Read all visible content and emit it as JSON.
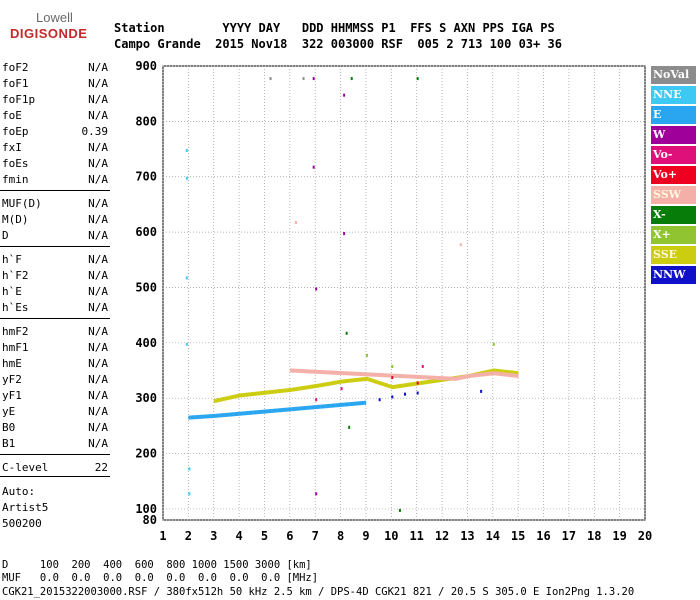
{
  "logo": {
    "top": "Lowell",
    "main": "DIGISONDE"
  },
  "header": {
    "line1": "Station        YYYY DAY   DDD HHMMSS P1  FFS S AXN PPS IGA PS",
    "line2": "Campo Grande  2015 Nov18  322 003000 RSF  005 2 713 100 03+ 36"
  },
  "params": [
    {
      "label": "foF2",
      "value": "N/A"
    },
    {
      "label": "foF1",
      "value": "N/A"
    },
    {
      "label": "foF1p",
      "value": "N/A"
    },
    {
      "label": "foE",
      "value": "N/A"
    },
    {
      "label": "foEp",
      "value": "0.39"
    },
    {
      "label": "fxI",
      "value": "N/A"
    },
    {
      "label": "foEs",
      "value": "N/A"
    },
    {
      "label": "fmin",
      "value": "N/A"
    },
    {
      "label": "MUF(D)",
      "value": "N/A"
    },
    {
      "label": "M(D)",
      "value": "N/A"
    },
    {
      "label": "D",
      "value": "N/A"
    },
    {
      "label": "h`F",
      "value": "N/A"
    },
    {
      "label": "h`F2",
      "value": "N/A"
    },
    {
      "label": "h`E",
      "value": "N/A"
    },
    {
      "label": "h`Es",
      "value": "N/A"
    },
    {
      "label": "hmF2",
      "value": "N/A"
    },
    {
      "label": "hmF1",
      "value": "N/A"
    },
    {
      "label": "hmE",
      "value": "N/A"
    },
    {
      "label": "yF2",
      "value": "N/A"
    },
    {
      "label": "yF1",
      "value": "N/A"
    },
    {
      "label": "yE",
      "value": "N/A"
    },
    {
      "label": "B0",
      "value": "N/A"
    },
    {
      "label": "B1",
      "value": "N/A"
    },
    {
      "label": "C-level",
      "value": "22"
    }
  ],
  "auto": {
    "line1": "Auto:",
    "line2": "Artist5",
    "line3": "500200"
  },
  "legend": [
    {
      "label": "NoVal",
      "color": "#8c8c8c"
    },
    {
      "label": "NNE",
      "color": "#3ec8f4"
    },
    {
      "label": "E",
      "color": "#2aa6f0"
    },
    {
      "label": "W",
      "color": "#a0009a"
    },
    {
      "label": "Vo-",
      "color": "#e0107a"
    },
    {
      "label": "Vo+",
      "color": "#f00020"
    },
    {
      "label": "SSW",
      "color": "#f4b0a8"
    },
    {
      "label": "X-",
      "color": "#087c08"
    },
    {
      "label": "X+",
      "color": "#90c430"
    },
    {
      "label": "SSE",
      "color": "#cccc10"
    },
    {
      "label": "NNW",
      "color": "#1010c8"
    }
  ],
  "footer": {
    "d_row": "D     100  200  400  600  800 1000 1500 3000 [km]",
    "muf_row": "MUF   0.0  0.0  0.0  0.0  0.0  0.0  0.0  0.0 [MHz]",
    "file_row": "CGK21_2015322003000.RSF / 380fx512h 50 kHz 2.5 km / DPS-4D CGK21 821 / 20.5 S 305.0 E Ion2Png 1.3.20"
  },
  "chart_data": {
    "type": "scatter",
    "xlim": [
      1,
      20
    ],
    "ylim": [
      80,
      900
    ],
    "x_ticks": [
      1,
      2,
      3,
      4,
      5,
      6,
      7,
      8,
      9,
      10,
      11,
      12,
      13,
      14,
      15,
      16,
      17,
      18,
      19,
      20
    ],
    "y_ticks": [
      80,
      100,
      200,
      300,
      400,
      500,
      600,
      700,
      800,
      900
    ],
    "grid": "dotted",
    "legend_placement": "right",
    "traces": [
      {
        "name": "E",
        "points": [
          [
            2.0,
            265
          ],
          [
            3.0,
            268
          ],
          [
            4.0,
            272
          ],
          [
            5.0,
            276
          ],
          [
            6.0,
            280
          ],
          [
            7.0,
            284
          ],
          [
            8.0,
            288
          ],
          [
            9.0,
            292
          ]
        ]
      },
      {
        "name": "NNE",
        "points": [
          [
            1.9,
            750
          ],
          [
            1.9,
            700
          ],
          [
            1.9,
            520
          ],
          [
            1.9,
            400
          ],
          [
            2.0,
            175
          ],
          [
            2.0,
            130
          ]
        ]
      },
      {
        "name": "SSE",
        "points": [
          [
            3.0,
            295
          ],
          [
            4.0,
            305
          ],
          [
            5.0,
            310
          ],
          [
            6.0,
            315
          ],
          [
            7.0,
            322
          ],
          [
            8.0,
            330
          ],
          [
            9.0,
            335
          ],
          [
            10.0,
            320
          ],
          [
            13.0,
            340
          ],
          [
            14.0,
            350
          ],
          [
            15.0,
            345
          ]
        ]
      },
      {
        "name": "NNW",
        "points": [
          [
            9.5,
            300
          ],
          [
            10.0,
            305
          ],
          [
            10.5,
            310
          ],
          [
            11.0,
            312
          ],
          [
            13.5,
            315
          ]
        ]
      },
      {
        "name": "SSW",
        "points": [
          [
            6.0,
            350
          ],
          [
            6.2,
            620
          ],
          [
            12.5,
            335
          ],
          [
            13.0,
            340
          ],
          [
            14.0,
            345
          ],
          [
            15.0,
            340
          ],
          [
            12.7,
            580
          ]
        ]
      },
      {
        "name": "W",
        "points": [
          [
            6.9,
            880
          ],
          [
            6.9,
            720
          ],
          [
            7.0,
            500
          ],
          [
            7.0,
            130
          ],
          [
            8.1,
            600
          ],
          [
            8.1,
            850
          ]
        ]
      },
      {
        "name": "X-",
        "points": [
          [
            8.4,
            880
          ],
          [
            8.2,
            420
          ],
          [
            8.3,
            250
          ],
          [
            10.3,
            100
          ],
          [
            11.0,
            880
          ]
        ]
      },
      {
        "name": "X+",
        "points": [
          [
            9.0,
            380
          ],
          [
            10.0,
            360
          ],
          [
            14.0,
            400
          ]
        ]
      },
      {
        "name": "Vo-",
        "points": [
          [
            7.0,
            300
          ],
          [
            8.0,
            320
          ],
          [
            11.2,
            360
          ]
        ]
      },
      {
        "name": "Vo+",
        "points": [
          [
            10.0,
            340
          ],
          [
            11.0,
            330
          ]
        ]
      },
      {
        "name": "NoVal",
        "points": [
          [
            5.2,
            880
          ],
          [
            6.5,
            880
          ]
        ]
      }
    ]
  }
}
